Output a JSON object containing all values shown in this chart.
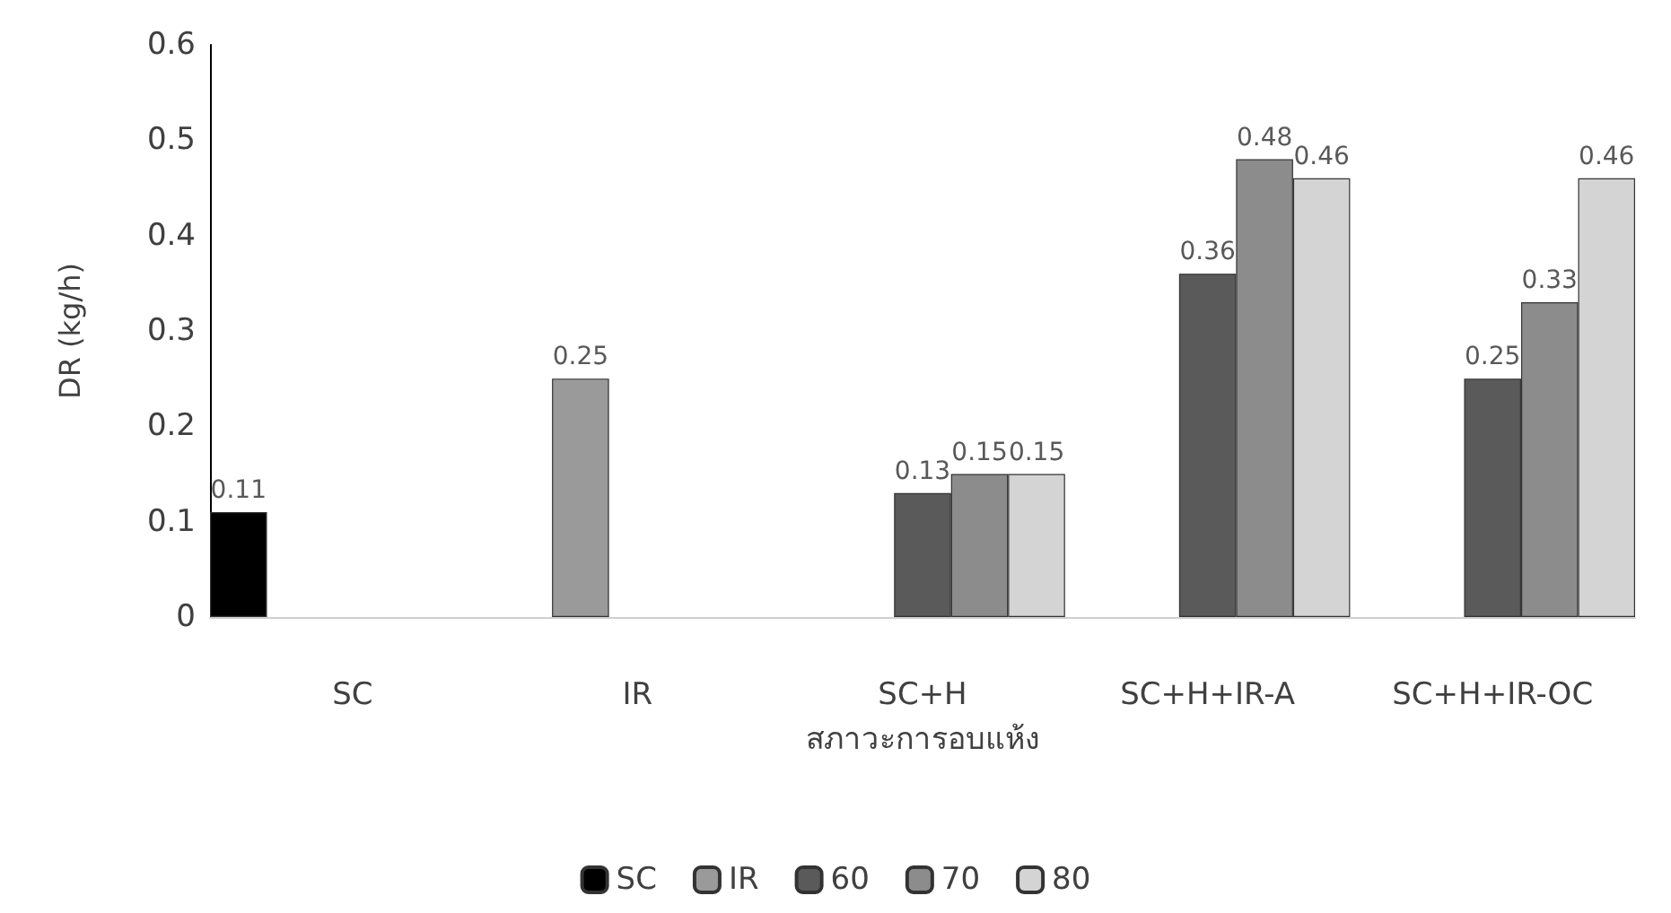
{
  "chart_data": {
    "type": "bar",
    "xlabel": "สภาวะการอบแห้ง",
    "ylabel": "DR (kg/h)",
    "categories": [
      "SC",
      "IR",
      "SC+H",
      "SC+H+IR-A",
      "SC+H+IR-OC"
    ],
    "series": [
      {
        "name": "SC",
        "color": "#000000",
        "values": [
          0.11,
          null,
          null,
          null,
          null
        ]
      },
      {
        "name": "IR",
        "color": "#9a9a9a",
        "values": [
          null,
          0.25,
          null,
          null,
          null
        ]
      },
      {
        "name": "60",
        "color": "#5a5a5a",
        "values": [
          null,
          null,
          0.13,
          0.36,
          0.25
        ]
      },
      {
        "name": "70",
        "color": "#8c8c8c",
        "values": [
          null,
          null,
          0.15,
          0.48,
          0.33
        ]
      },
      {
        "name": "80",
        "color": "#d4d4d4",
        "values": [
          null,
          null,
          0.15,
          0.46,
          0.46
        ]
      }
    ],
    "ylim": [
      0,
      0.6
    ],
    "yticks": [
      0,
      0.1,
      0.2,
      0.3,
      0.4,
      0.5,
      0.6
    ],
    "data_labels": true,
    "legend": "bottom",
    "grid": false
  }
}
